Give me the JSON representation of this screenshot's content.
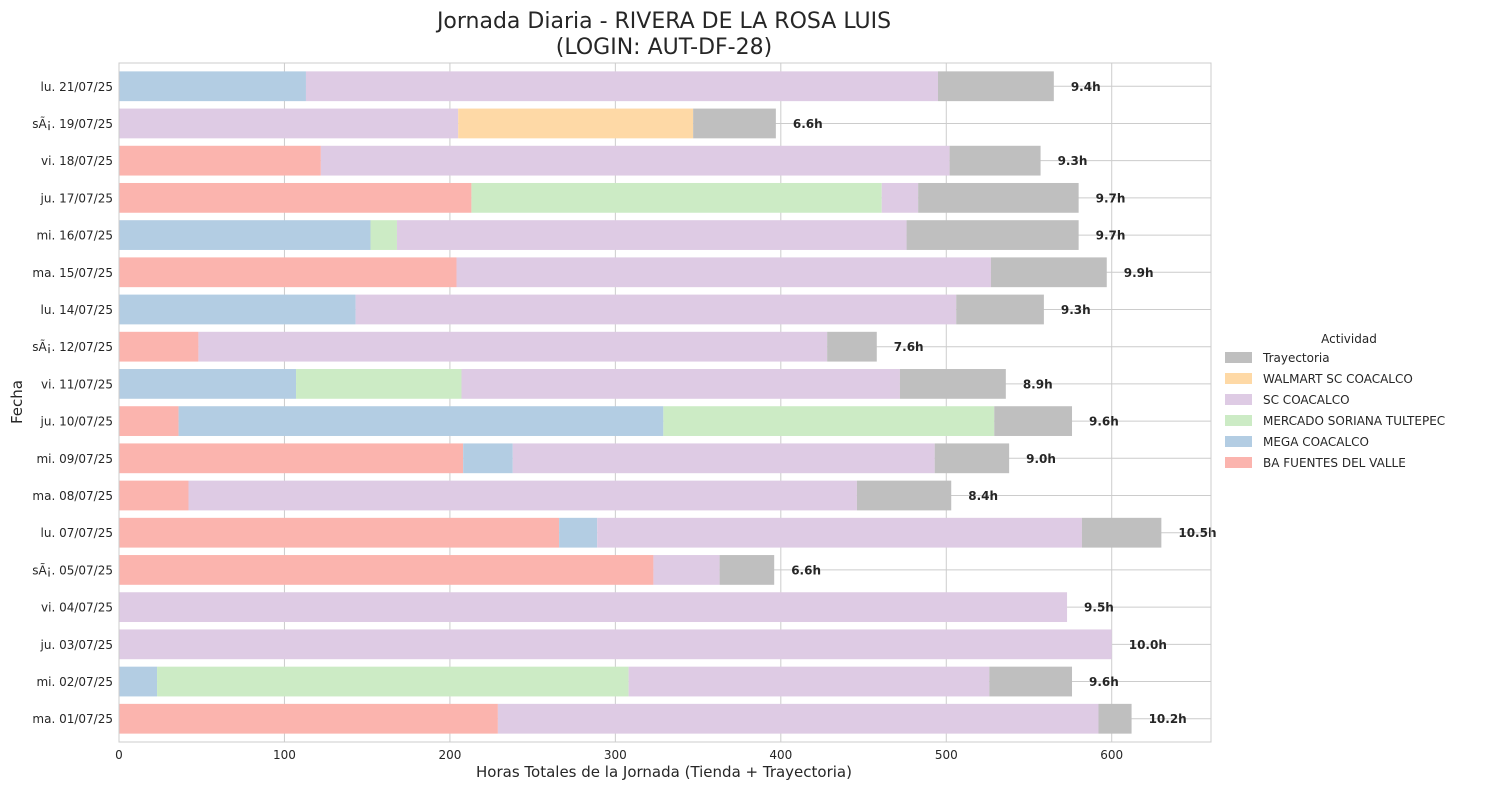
{
  "chart_data": {
    "type": "bar",
    "orientation": "horizontal",
    "stacked": true,
    "title_line1": "Jornada Diaria - RIVERA DE LA ROSA LUIS",
    "title_line2": "(LOGIN: AUT-DF-28)",
    "xlabel": "Horas Totales de la Jornada (Tienda + Trayectoria)",
    "ylabel": "Fecha",
    "xlim": [
      0,
      660
    ],
    "xticks": [
      0,
      100,
      200,
      300,
      400,
      500,
      600
    ],
    "grid": true,
    "legend": {
      "title": "Actividad",
      "placement": "center-right",
      "entries": [
        "Trayectoria",
        "WALMART SC COACALCO",
        "SC COACALCO",
        "MERCADO SORIANA TULTEPEC",
        "MEGA COACALCO",
        "BA FUENTES DEL VALLE"
      ]
    },
    "colors": {
      "BA FUENTES DEL VALLE": "#fbb4ae",
      "MEGA COACALCO": "#b3cde3",
      "MERCADO SORIANA TULTEPEC": "#ccebc5",
      "SC COACALCO": "#decbe4",
      "WALMART SC COACALCO": "#fed9a6",
      "Trayectoria": "#bfbfbf"
    },
    "categories": [
      "lu. 21/07/25",
      "sÃ¡. 19/07/25",
      "vi. 18/07/25",
      "ju. 17/07/25",
      "mi. 16/07/25",
      "ma. 15/07/25",
      "lu. 14/07/25",
      "sÃ¡. 12/07/25",
      "vi. 11/07/25",
      "ju. 10/07/25",
      "mi. 09/07/25",
      "ma. 08/07/25",
      "lu. 07/07/25",
      "sÃ¡. 05/07/25",
      "vi. 04/07/25",
      "ju. 03/07/25",
      "mi. 02/07/25",
      "ma. 01/07/25"
    ],
    "display_categories": [
      "lu. 21/07/25",
      "sÃ¡. 19/07/25",
      "vi. 18/07/25",
      "ju. 17/07/25",
      "mi. 16/07/25",
      "ma. 15/07/25",
      "lu. 14/07/25",
      "sÃ¡. 12/07/25",
      "vi. 11/07/25",
      "ju. 10/07/25",
      "mi. 09/07/25",
      "ma. 08/07/25",
      "lu. 07/07/25",
      "sÃ¡. 05/07/25",
      "vi. 04/07/25",
      "ju. 03/07/25",
      "mi. 02/07/25",
      "ma. 01/07/25"
    ],
    "rows": [
      {
        "segments": [
          {
            "activity": "MEGA COACALCO",
            "value": 113
          },
          {
            "activity": "SC COACALCO",
            "value": 382
          },
          {
            "activity": "Trayectoria",
            "value": 70
          }
        ],
        "total_label": "9.4h"
      },
      {
        "segments": [
          {
            "activity": "SC COACALCO",
            "value": 205
          },
          {
            "activity": "WALMART SC COACALCO",
            "value": 142
          },
          {
            "activity": "Trayectoria",
            "value": 50
          }
        ],
        "total_label": "6.6h"
      },
      {
        "segments": [
          {
            "activity": "BA FUENTES DEL VALLE",
            "value": 122
          },
          {
            "activity": "SC COACALCO",
            "value": 380
          },
          {
            "activity": "Trayectoria",
            "value": 55
          }
        ],
        "total_label": "9.3h"
      },
      {
        "segments": [
          {
            "activity": "BA FUENTES DEL VALLE",
            "value": 213
          },
          {
            "activity": "MERCADO SORIANA TULTEPEC",
            "value": 248
          },
          {
            "activity": "SC COACALCO",
            "value": 22
          },
          {
            "activity": "Trayectoria",
            "value": 97
          }
        ],
        "total_label": "9.7h"
      },
      {
        "segments": [
          {
            "activity": "MEGA COACALCO",
            "value": 152
          },
          {
            "activity": "MERCADO SORIANA TULTEPEC",
            "value": 16
          },
          {
            "activity": "SC COACALCO",
            "value": 308
          },
          {
            "activity": "Trayectoria",
            "value": 104
          }
        ],
        "total_label": "9.7h"
      },
      {
        "segments": [
          {
            "activity": "BA FUENTES DEL VALLE",
            "value": 204
          },
          {
            "activity": "SC COACALCO",
            "value": 323
          },
          {
            "activity": "Trayectoria",
            "value": 70
          }
        ],
        "total_label": "9.9h"
      },
      {
        "segments": [
          {
            "activity": "MEGA COACALCO",
            "value": 143
          },
          {
            "activity": "SC COACALCO",
            "value": 363
          },
          {
            "activity": "Trayectoria",
            "value": 53
          }
        ],
        "total_label": "9.3h"
      },
      {
        "segments": [
          {
            "activity": "BA FUENTES DEL VALLE",
            "value": 48
          },
          {
            "activity": "SC COACALCO",
            "value": 380
          },
          {
            "activity": "Trayectoria",
            "value": 30
          }
        ],
        "total_label": "7.6h"
      },
      {
        "segments": [
          {
            "activity": "MEGA COACALCO",
            "value": 107
          },
          {
            "activity": "MERCADO SORIANA TULTEPEC",
            "value": 100
          },
          {
            "activity": "SC COACALCO",
            "value": 265
          },
          {
            "activity": "Trayectoria",
            "value": 64
          }
        ],
        "total_label": "8.9h"
      },
      {
        "segments": [
          {
            "activity": "BA FUENTES DEL VALLE",
            "value": 36
          },
          {
            "activity": "MEGA COACALCO",
            "value": 293
          },
          {
            "activity": "MERCADO SORIANA TULTEPEC",
            "value": 200
          },
          {
            "activity": "Trayectoria",
            "value": 47
          }
        ],
        "total_label": "9.6h"
      },
      {
        "segments": [
          {
            "activity": "BA FUENTES DEL VALLE",
            "value": 208
          },
          {
            "activity": "MEGA COACALCO",
            "value": 30
          },
          {
            "activity": "SC COACALCO",
            "value": 255
          },
          {
            "activity": "Trayectoria",
            "value": 45
          }
        ],
        "total_label": "9.0h"
      },
      {
        "segments": [
          {
            "activity": "BA FUENTES DEL VALLE",
            "value": 42
          },
          {
            "activity": "SC COACALCO",
            "value": 404
          },
          {
            "activity": "Trayectoria",
            "value": 57
          }
        ],
        "total_label": "8.4h"
      },
      {
        "segments": [
          {
            "activity": "BA FUENTES DEL VALLE",
            "value": 266
          },
          {
            "activity": "MEGA COACALCO",
            "value": 23
          },
          {
            "activity": "SC COACALCO",
            "value": 293
          },
          {
            "activity": "Trayectoria",
            "value": 48
          }
        ],
        "total_label": "10.5h"
      },
      {
        "segments": [
          {
            "activity": "BA FUENTES DEL VALLE",
            "value": 323
          },
          {
            "activity": "SC COACALCO",
            "value": 40
          },
          {
            "activity": "Trayectoria",
            "value": 33
          }
        ],
        "total_label": "6.6h"
      },
      {
        "segments": [
          {
            "activity": "SC COACALCO",
            "value": 573
          }
        ],
        "total_label": "9.5h"
      },
      {
        "segments": [
          {
            "activity": "SC COACALCO",
            "value": 600
          }
        ],
        "total_label": "10.0h"
      },
      {
        "segments": [
          {
            "activity": "MEGA COACALCO",
            "value": 23
          },
          {
            "activity": "MERCADO SORIANA TULTEPEC",
            "value": 285
          },
          {
            "activity": "SC COACALCO",
            "value": 218
          },
          {
            "activity": "Trayectoria",
            "value": 50
          }
        ],
        "total_label": "9.6h"
      },
      {
        "segments": [
          {
            "activity": "BA FUENTES DEL VALLE",
            "value": 229
          },
          {
            "activity": "SC COACALCO",
            "value": 363
          },
          {
            "activity": "Trayectoria",
            "value": 20
          }
        ],
        "total_label": "10.2h"
      }
    ]
  }
}
